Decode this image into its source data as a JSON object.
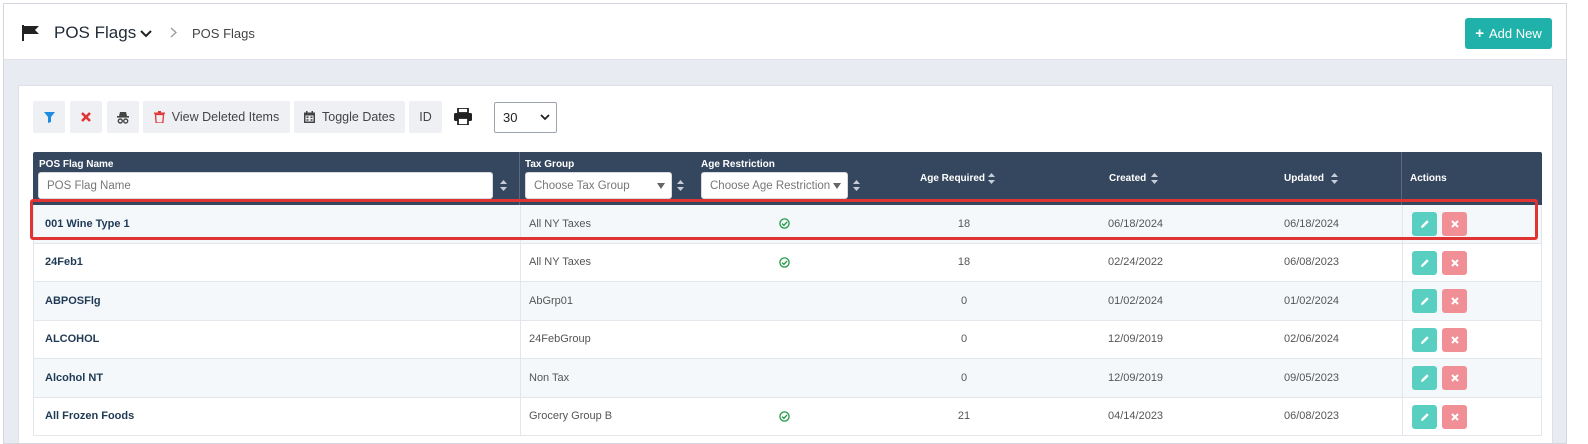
{
  "header": {
    "title": "POS Flags",
    "breadcrumb": "POS Flags",
    "add_new_label": "Add New",
    "flag_icon": "flag-icon"
  },
  "toolbar": {
    "view_deleted_label": "View Deleted Items",
    "toggle_dates_label": "Toggle Dates",
    "id_label": "ID",
    "page_size": "30"
  },
  "table": {
    "columns": {
      "name": "POS Flag Name",
      "tax_group": "Tax Group",
      "age_restriction": "Age Restriction",
      "age_required": "Age Required",
      "created": "Created",
      "updated": "Updated",
      "actions": "Actions"
    },
    "filters": {
      "name_placeholder": "POS Flag Name",
      "tax_group_placeholder": "Choose Tax Group",
      "age_restriction_placeholder": "Choose Age Restriction"
    },
    "rows": [
      {
        "name": "001 Wine Type 1",
        "tax_group": "All NY Taxes",
        "age_restriction": true,
        "age_required": "18",
        "created": "06/18/2024",
        "updated": "06/18/2024"
      },
      {
        "name": "24Feb1",
        "tax_group": "All NY Taxes",
        "age_restriction": true,
        "age_required": "18",
        "created": "02/24/2022",
        "updated": "06/08/2023"
      },
      {
        "name": "ABPOSFlg",
        "tax_group": "AbGrp01",
        "age_restriction": false,
        "age_required": "0",
        "created": "01/02/2024",
        "updated": "01/02/2024"
      },
      {
        "name": "ALCOHOL",
        "tax_group": "24FebGroup",
        "age_restriction": false,
        "age_required": "0",
        "created": "12/09/2019",
        "updated": "02/06/2024"
      },
      {
        "name": "Alcohol NT",
        "tax_group": "Non Tax",
        "age_restriction": false,
        "age_required": "0",
        "created": "12/09/2019",
        "updated": "09/05/2023"
      },
      {
        "name": "All Frozen Foods",
        "tax_group": "Grocery Group B",
        "age_restriction": true,
        "age_required": "21",
        "created": "04/14/2023",
        "updated": "06/08/2023"
      }
    ]
  },
  "colors": {
    "accent": "#20b2aa",
    "header_bg": "#35475f",
    "edit": "#59cfc2",
    "delete": "#f08f96",
    "highlight": "#e03434"
  }
}
